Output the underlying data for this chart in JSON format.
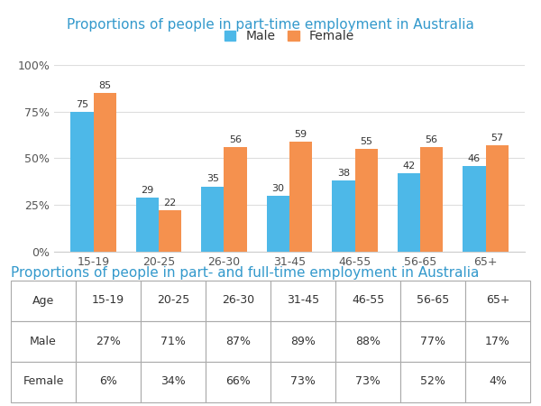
{
  "title_bar": "Proportions of people in part-time employment in Australia",
  "title_table": "Proportions of people in part- and full-time employment in Australia",
  "categories": [
    "15-19",
    "20-25",
    "26-30",
    "31-45",
    "46-55",
    "56-65",
    "65+"
  ],
  "male_values": [
    75,
    29,
    35,
    30,
    38,
    42,
    46
  ],
  "female_values": [
    85,
    22,
    56,
    59,
    55,
    56,
    57
  ],
  "male_color": "#4db8e8",
  "female_color": "#f5914e",
  "ylim": [
    0,
    100
  ],
  "yticks": [
    0,
    25,
    50,
    75,
    100
  ],
  "ytick_labels": [
    "0%",
    "25%",
    "50%",
    "75%",
    "100%"
  ],
  "background_color": "#ffffff",
  "title_color": "#3399cc",
  "table_headers": [
    "Age",
    "15-19",
    "20-25",
    "26-30",
    "31-45",
    "46-55",
    "56-65",
    "65+"
  ],
  "table_male": [
    "27%",
    "71%",
    "87%",
    "89%",
    "88%",
    "77%",
    "17%"
  ],
  "table_female": [
    "6%",
    "34%",
    "66%",
    "73%",
    "73%",
    "52%",
    "4%"
  ],
  "bar_width": 0.35,
  "title_fontsize": 11,
  "axis_fontsize": 9,
  "bar_label_fontsize": 8,
  "legend_fontsize": 10,
  "table_fontsize": 9
}
